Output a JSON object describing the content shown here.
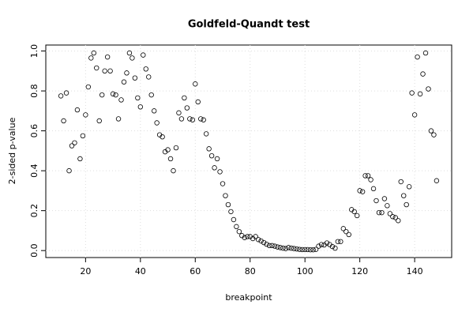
{
  "chart_data": {
    "type": "scatter",
    "title": "Goldfeld-Quandt test",
    "x_label": "breakpoint",
    "y_label": "2-sided p-value",
    "x": [
      11,
      12,
      13,
      14,
      15,
      16,
      17,
      18,
      19,
      20,
      21,
      22,
      23,
      24,
      25,
      26,
      27,
      28,
      29,
      30,
      31,
      32,
      33,
      34,
      35,
      36,
      37,
      38,
      39,
      40,
      41,
      42,
      43,
      44,
      45,
      46,
      47,
      48,
      49,
      50,
      51,
      52,
      53,
      54,
      55,
      56,
      57,
      58,
      59,
      60,
      61,
      62,
      63,
      64,
      65,
      66,
      67,
      68,
      69,
      70,
      71,
      72,
      73,
      74,
      75,
      76,
      77,
      78,
      79,
      80,
      81,
      82,
      83,
      84,
      85,
      86,
      87,
      88,
      89,
      90,
      91,
      92,
      93,
      94,
      95,
      96,
      97,
      98,
      99,
      100,
      101,
      102,
      103,
      104,
      105,
      106,
      107,
      108,
      109,
      110,
      111,
      112,
      113,
      114,
      115,
      116,
      117,
      118,
      119,
      120,
      121,
      122,
      123,
      124,
      125,
      126,
      127,
      128,
      129,
      130,
      131,
      132,
      133,
      134,
      135,
      136,
      137,
      138,
      139,
      140,
      141,
      142,
      143,
      144,
      145,
      146,
      147,
      148
    ],
    "values": [
      0.775,
      0.65,
      0.79,
      0.4,
      0.525,
      0.54,
      0.705,
      0.46,
      0.575,
      0.68,
      0.82,
      0.965,
      0.99,
      0.915,
      0.65,
      0.78,
      0.9,
      0.97,
      0.9,
      0.785,
      0.78,
      0.66,
      0.755,
      0.845,
      0.89,
      0.99,
      0.965,
      0.865,
      0.765,
      0.72,
      0.98,
      0.91,
      0.87,
      0.78,
      0.7,
      0.64,
      0.58,
      0.57,
      0.495,
      0.505,
      0.46,
      0.4,
      0.515,
      0.69,
      0.66,
      0.765,
      0.715,
      0.66,
      0.655,
      0.835,
      0.745,
      0.66,
      0.655,
      0.585,
      0.51,
      0.475,
      0.415,
      0.46,
      0.395,
      0.335,
      0.275,
      0.23,
      0.195,
      0.155,
      0.12,
      0.095,
      0.075,
      0.065,
      0.07,
      0.07,
      0.06,
      0.07,
      0.055,
      0.048,
      0.04,
      0.032,
      0.025,
      0.025,
      0.022,
      0.018,
      0.015,
      0.012,
      0.01,
      0.015,
      0.012,
      0.01,
      0.008,
      0.006,
      0.005,
      0.005,
      0.005,
      0.004,
      0.004,
      0.006,
      0.022,
      0.03,
      0.028,
      0.038,
      0.03,
      0.02,
      0.012,
      0.045,
      0.045,
      0.11,
      0.095,
      0.08,
      0.205,
      0.195,
      0.175,
      0.3,
      0.295,
      0.375,
      0.375,
      0.355,
      0.31,
      0.25,
      0.19,
      0.19,
      0.26,
      0.225,
      0.185,
      0.17,
      0.165,
      0.15,
      0.345,
      0.275,
      0.23,
      0.32,
      0.79,
      0.68,
      0.97,
      0.785,
      0.885,
      0.99,
      0.81,
      0.6,
      0.58,
      0.35
    ],
    "color": "#000000",
    "xlim": [
      5.5,
      153.5
    ],
    "xticks": [
      20,
      40,
      60,
      80,
      100,
      120,
      140
    ],
    "ylim": [
      -0.035,
      1.03
    ],
    "yticks": [
      {
        "value": 0,
        "label": "0.0"
      },
      0.2,
      0.4,
      0.6,
      0.8,
      {
        "value": 1,
        "label": "1.0"
      }
    ],
    "grid": true
  }
}
